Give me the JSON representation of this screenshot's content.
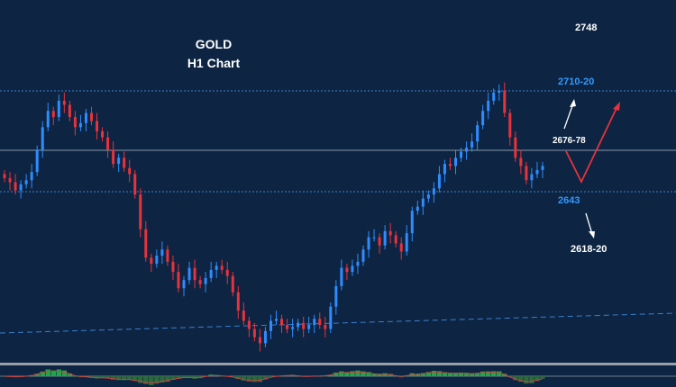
{
  "colors": {
    "background": "#0d2542",
    "bull": "#2f8cff",
    "bear": "#e8323c",
    "level_line": "#3a7fd0",
    "mid_line": "#8899aa",
    "trend_line": "#3a7fd0",
    "white": "#ffffff",
    "level_blue": "#3399ff",
    "osc_positive": "#1fa84a",
    "osc_negative": "#2b6a3c",
    "osc_signal": "#d04040",
    "panel_border": "#9aa0a8"
  },
  "chart_data": {
    "type": "candlestick",
    "title": "GOLD",
    "subtitle": "H1 Chart",
    "ylim": [
      2583,
      2753
    ],
    "candle_count": 100,
    "closes": [
      2670,
      2668,
      2664,
      2667,
      2669,
      2673,
      2684,
      2695,
      2703,
      2700,
      2708,
      2706,
      2700,
      2695,
      2697,
      2702,
      2698,
      2693,
      2690,
      2684,
      2677,
      2680,
      2675,
      2672,
      2662,
      2645,
      2631,
      2628,
      2632,
      2635,
      2629,
      2624,
      2616,
      2620,
      2626,
      2620,
      2618,
      2621,
      2625,
      2627,
      2625,
      2622,
      2614,
      2605,
      2600,
      2596,
      2592,
      2589,
      2595,
      2600,
      2601,
      2598,
      2596,
      2597,
      2599,
      2596,
      2598,
      2601,
      2598,
      2596,
      2607,
      2617,
      2626,
      2624,
      2627,
      2629,
      2635,
      2641,
      2641,
      2637,
      2644,
      2642,
      2638,
      2634,
      2643,
      2654,
      2656,
      2660,
      2662,
      2665,
      2672,
      2677,
      2676,
      2680,
      2683,
      2685,
      2688,
      2696,
      2703,
      2708,
      2712,
      2713,
      2702,
      2690,
      2680,
      2676,
      2669,
      2672,
      2674,
      2676
    ],
    "levels": [
      {
        "label": "2748",
        "value": 2748
      },
      {
        "label": "2710-20",
        "value": 2710
      },
      {
        "label": "2676-78",
        "value": 2677
      },
      {
        "label": "2643",
        "value": 2643
      },
      {
        "label": "2618-20",
        "value": 2619
      }
    ]
  },
  "labels": {
    "title": "GOLD",
    "subtitle": "H1 Chart",
    "level_2748": "2748",
    "level_2710": "2710-20",
    "level_2676": "2676-78",
    "level_2643": "2643",
    "level_2618": "2618-20"
  }
}
